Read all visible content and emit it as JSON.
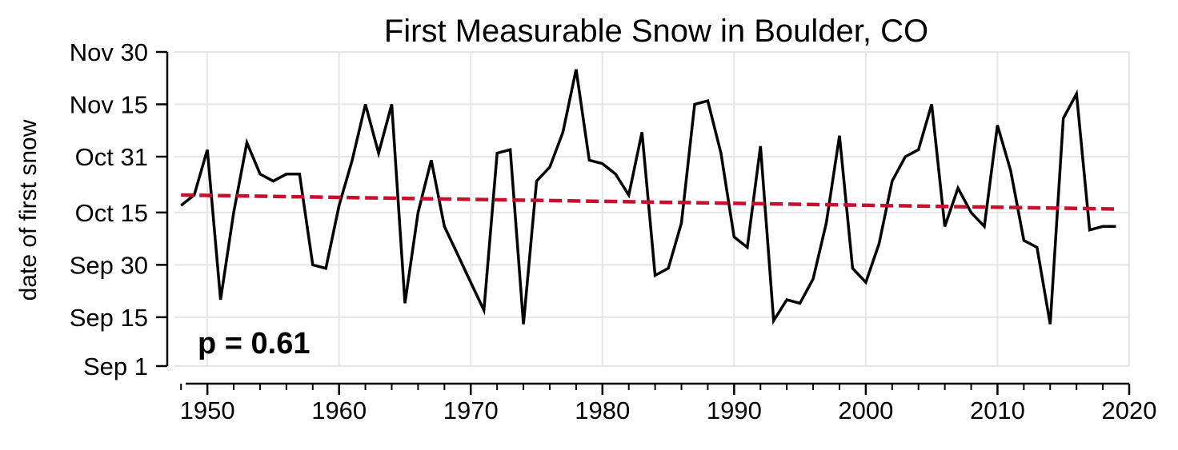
{
  "chart_data": {
    "type": "line",
    "title": "First Measurable Snow in Boulder, CO",
    "xlabel": "",
    "ylabel": "date of first snow",
    "xlim": [
      1947.5,
      2020
    ],
    "ylim": [
      "Sep 1",
      "Nov 30"
    ],
    "x_ticks": [
      "1950",
      "1960",
      "1970",
      "1980",
      "1990",
      "2000",
      "2010",
      "2020"
    ],
    "y_ticks": [
      "Sep 1",
      "Sep 15",
      "Sep 30",
      "Oct 15",
      "Oct 31",
      "Nov 15",
      "Nov 30"
    ],
    "grid": true,
    "annotation": "p = 0.61",
    "series": [
      {
        "color": "#000000",
        "style": "solid",
        "x": [
          1948,
          1949,
          1950,
          1951,
          1952,
          1953,
          1954,
          1955,
          1956,
          1957,
          1958,
          1959,
          1960,
          1961,
          1962,
          1963,
          1964,
          1965,
          1966,
          1967,
          1968,
          1969,
          1970,
          1971,
          1972,
          1973,
          1974,
          1975,
          1976,
          1977,
          1978,
          1979,
          1980,
          1981,
          1982,
          1983,
          1984,
          1985,
          1986,
          1987,
          1988,
          1989,
          1990,
          1991,
          1992,
          1993,
          1994,
          1995,
          1996,
          1997,
          1998,
          1999,
          2000,
          2001,
          2002,
          2003,
          2004,
          2005,
          2006,
          2007,
          2008,
          2009,
          2010,
          2011,
          2012,
          2013,
          2014,
          2015,
          2016,
          2017,
          2018,
          2019
        ],
        "y": [
          "Oct 17",
          "Oct 20",
          "Nov 2",
          "Sep 20",
          "Oct 15",
          "Nov 4",
          "Oct 26",
          "Oct 24",
          "Oct 26",
          "Oct 26",
          "Sep 30",
          "Sep 29",
          "Oct 17",
          "Oct 30",
          "Nov 15",
          "Nov 1",
          "Nov 15",
          "Sep 19",
          "Oct 15",
          "Oct 30",
          "Oct 11",
          "Oct 3",
          "Sep 25",
          "Sep 17",
          "Nov 1",
          "Nov 2",
          "Sep 13",
          "Oct 24",
          "Oct 28",
          "Nov 7",
          "Nov 25",
          "Oct 30",
          "Oct 29",
          "Oct 26",
          "Oct 20",
          "Nov 7",
          "Sep 27",
          "Sep 29",
          "Oct 12",
          "Nov 15",
          "Nov 16",
          "Nov 1",
          "Oct 8",
          "Oct 5",
          "Nov 3",
          "Sep 14",
          "Sep 20",
          "Sep 19",
          "Sep 26",
          "Oct 12",
          "Nov 6",
          "Sep 29",
          "Sep 25",
          "Oct 6",
          "Oct 24",
          "Oct 31",
          "Nov 2",
          "Nov 15",
          "Oct 11",
          "Oct 22",
          "Oct 15",
          "Oct 11",
          "Nov 9",
          "Oct 27",
          "Oct 7",
          "Oct 5",
          "Sep 13",
          "Nov 11",
          "Nov 18",
          "Oct 10",
          "Oct 11",
          "Oct 11"
        ]
      },
      {
        "color": "#c8102e",
        "style": "dashed",
        "x": [
          1948,
          2019
        ],
        "y": [
          "Oct 20",
          "Oct 16"
        ]
      }
    ]
  }
}
